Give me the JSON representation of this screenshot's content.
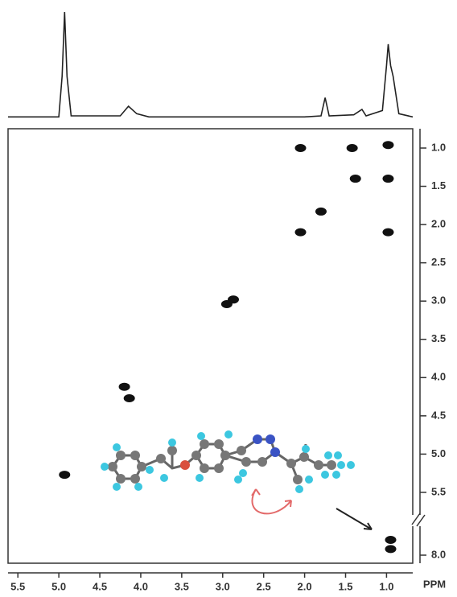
{
  "chart_data": [
    {
      "type": "line",
      "x": [
        5.62,
        5.0,
        4.96,
        4.93,
        4.9,
        4.85,
        4.25,
        4.15,
        4.05,
        3.9,
        2.0,
        1.8,
        1.75,
        1.7,
        1.4,
        1.3,
        1.25,
        1.05,
        1.0,
        0.98,
        0.95,
        0.92,
        0.85,
        0.68
      ],
      "values": [
        2,
        2,
        40,
        100,
        40,
        3,
        3,
        12,
        5,
        2,
        2,
        3,
        20,
        3,
        4,
        9,
        3,
        8,
        50,
        70,
        50,
        40,
        5,
        2
      ],
      "color": "#222222",
      "xlim": [
        5.62,
        0.68
      ],
      "ylim": [
        0,
        100
      ]
    },
    {
      "type": "scatter",
      "x": [
        0.98,
        2.05,
        1.42,
        1.38,
        1.8,
        2.05,
        0.98,
        0.98,
        2.95,
        2.87,
        4.14,
        4.2,
        4.93,
        0.95,
        0.95
      ],
      "values": [
        0.96,
        1.0,
        1.0,
        1.4,
        1.83,
        2.1,
        2.1,
        1.4,
        3.04,
        2.98,
        4.27,
        4.12,
        5.27,
        7.8,
        7.92
      ],
      "color": "#111111",
      "x_label": "PPM",
      "xlim": [
        5.62,
        0.68
      ],
      "ylim": [
        0.75,
        8.1
      ],
      "xticks": [
        5.5,
        {
          "value": 5,
          "label": "5.0"
        },
        4.5,
        {
          "value": 4,
          "label": "4.0"
        },
        3.5,
        {
          "value": 3,
          "label": "3.0"
        },
        2.5,
        {
          "value": 2,
          "label": "2.0"
        },
        1.5,
        {
          "value": 1,
          "label": "1.0"
        }
      ],
      "yticks": [
        {
          "value": 1,
          "label": "1.0"
        },
        1.5,
        {
          "value": 2,
          "label": "2.0"
        },
        2.5,
        {
          "value": 3,
          "label": "3.0"
        },
        3.5,
        {
          "value": 4,
          "label": "4.0"
        },
        4.5,
        {
          "value": 5,
          "label": "5.0"
        },
        5.5,
        {
          "value": 8,
          "label": "8.0"
        }
      ]
    }
  ]
}
